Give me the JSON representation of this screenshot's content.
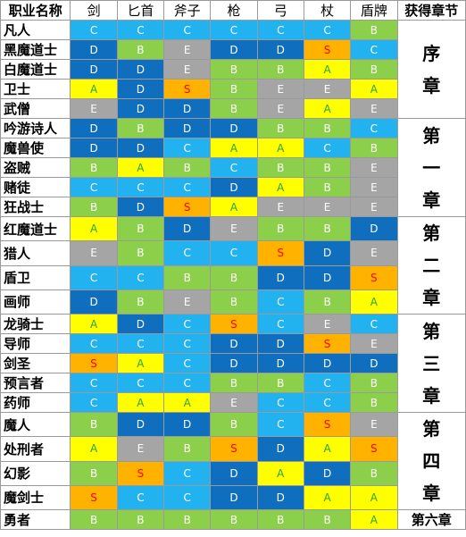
{
  "colors": {
    "C": {
      "bg": "#22b2f0",
      "fg": "#ffffff"
    },
    "D": {
      "bg": "#0f6fbe",
      "fg": "#ffffff"
    },
    "B": {
      "bg": "#8ccf4a",
      "fg": "#ffffff"
    },
    "E": {
      "bg": "#a5a5a5",
      "fg": "#ffffff"
    },
    "A": {
      "bg": "#ffff00",
      "fg": "#2aa23a"
    },
    "S": {
      "bg": "#ffb300",
      "fg": "#ff0000"
    }
  },
  "headers": {
    "name": "职业名称",
    "weapons": [
      "剑",
      "匕首",
      "斧子",
      "枪",
      "弓",
      "杖",
      "盾牌"
    ],
    "chapter": "获得章节"
  },
  "rows": [
    {
      "name": "凡人",
      "grades": [
        "C",
        "C",
        "C",
        "C",
        "C",
        "C",
        "B"
      ]
    },
    {
      "name": "黑魔道士",
      "grades": [
        "D",
        "B",
        "E",
        "D",
        "D",
        "S",
        "C"
      ]
    },
    {
      "name": "白魔道士",
      "grades": [
        "D",
        "D",
        "E",
        "B",
        "B",
        "A",
        "B"
      ]
    },
    {
      "name": "卫士",
      "grades": [
        "A",
        "D",
        "S",
        "B",
        "E",
        "E",
        "A"
      ]
    },
    {
      "name": "武僧",
      "grades": [
        "E",
        "D",
        "D",
        "B",
        "E",
        "A",
        "E"
      ]
    },
    {
      "name": "吟游诗人",
      "grades": [
        "D",
        "B",
        "D",
        "D",
        "B",
        "B",
        "C"
      ]
    },
    {
      "name": "魔兽使",
      "grades": [
        "D",
        "D",
        "C",
        "A",
        "A",
        "C",
        "B"
      ]
    },
    {
      "name": "盗贼",
      "grades": [
        "B",
        "A",
        "B",
        "C",
        "B",
        "B",
        "E"
      ]
    },
    {
      "name": "赌徒",
      "grades": [
        "C",
        "C",
        "C",
        "D",
        "A",
        "B",
        "E"
      ]
    },
    {
      "name": "狂战士",
      "grades": [
        "B",
        "D",
        "S",
        "A",
        "E",
        "E",
        "E"
      ]
    },
    {
      "name": "红魔道士",
      "grades": [
        "A",
        "B",
        "D",
        "E",
        "B",
        "B",
        "D"
      ]
    },
    {
      "name": "猎人",
      "grades": [
        "E",
        "B",
        "C",
        "C",
        "S",
        "D",
        "E"
      ]
    },
    {
      "name": "盾卫",
      "grades": [
        "C",
        "C",
        "B",
        "B",
        "D",
        "D",
        "S"
      ]
    },
    {
      "name": "画师",
      "grades": [
        "D",
        "B",
        "E",
        "B",
        "C",
        "B",
        "A"
      ]
    },
    {
      "name": "龙骑士",
      "grades": [
        "A",
        "D",
        "C",
        "S",
        "C",
        "E",
        "C"
      ]
    },
    {
      "name": "导师",
      "grades": [
        "C",
        "C",
        "C",
        "D",
        "D",
        "S",
        "E"
      ]
    },
    {
      "name": "剑圣",
      "grades": [
        "S",
        "A",
        "C",
        "D",
        "D",
        "D",
        "D"
      ]
    },
    {
      "name": "预言者",
      "grades": [
        "C",
        "C",
        "C",
        "B",
        "B",
        "C",
        "B"
      ]
    },
    {
      "name": "药师",
      "grades": [
        "C",
        "A",
        "A",
        "E",
        "C",
        "C",
        "B"
      ]
    },
    {
      "name": "魔人",
      "grades": [
        "B",
        "D",
        "D",
        "B",
        "C",
        "S",
        "E"
      ]
    },
    {
      "name": "处刑者",
      "grades": [
        "A",
        "E",
        "B",
        "S",
        "D",
        "A",
        "S"
      ]
    },
    {
      "name": "幻影",
      "grades": [
        "B",
        "S",
        "C",
        "D",
        "A",
        "D",
        "B"
      ]
    },
    {
      "name": "魔剑士",
      "grades": [
        "S",
        "C",
        "C",
        "D",
        "D",
        "A",
        "A"
      ]
    },
    {
      "name": "勇者",
      "grades": [
        "B",
        "B",
        "B",
        "B",
        "B",
        "B",
        "A"
      ]
    }
  ],
  "chapters": [
    {
      "label": "序章",
      "chars": [
        "序",
        "章"
      ],
      "start": 0,
      "span": 5
    },
    {
      "label": "第一章",
      "chars": [
        "第",
        "一",
        "章"
      ],
      "start": 5,
      "span": 5
    },
    {
      "label": "第二章",
      "chars": [
        "第",
        "二",
        "章"
      ],
      "start": 10,
      "span": 4
    },
    {
      "label": "第三章",
      "chars": [
        "第",
        "三",
        "章"
      ],
      "start": 14,
      "span": 5
    },
    {
      "label": "第四章",
      "chars": [
        "第",
        "四",
        "章"
      ],
      "start": 19,
      "span": 4
    },
    {
      "label": "第六章",
      "chars": [
        "第六章"
      ],
      "start": 23,
      "span": 1
    }
  ]
}
